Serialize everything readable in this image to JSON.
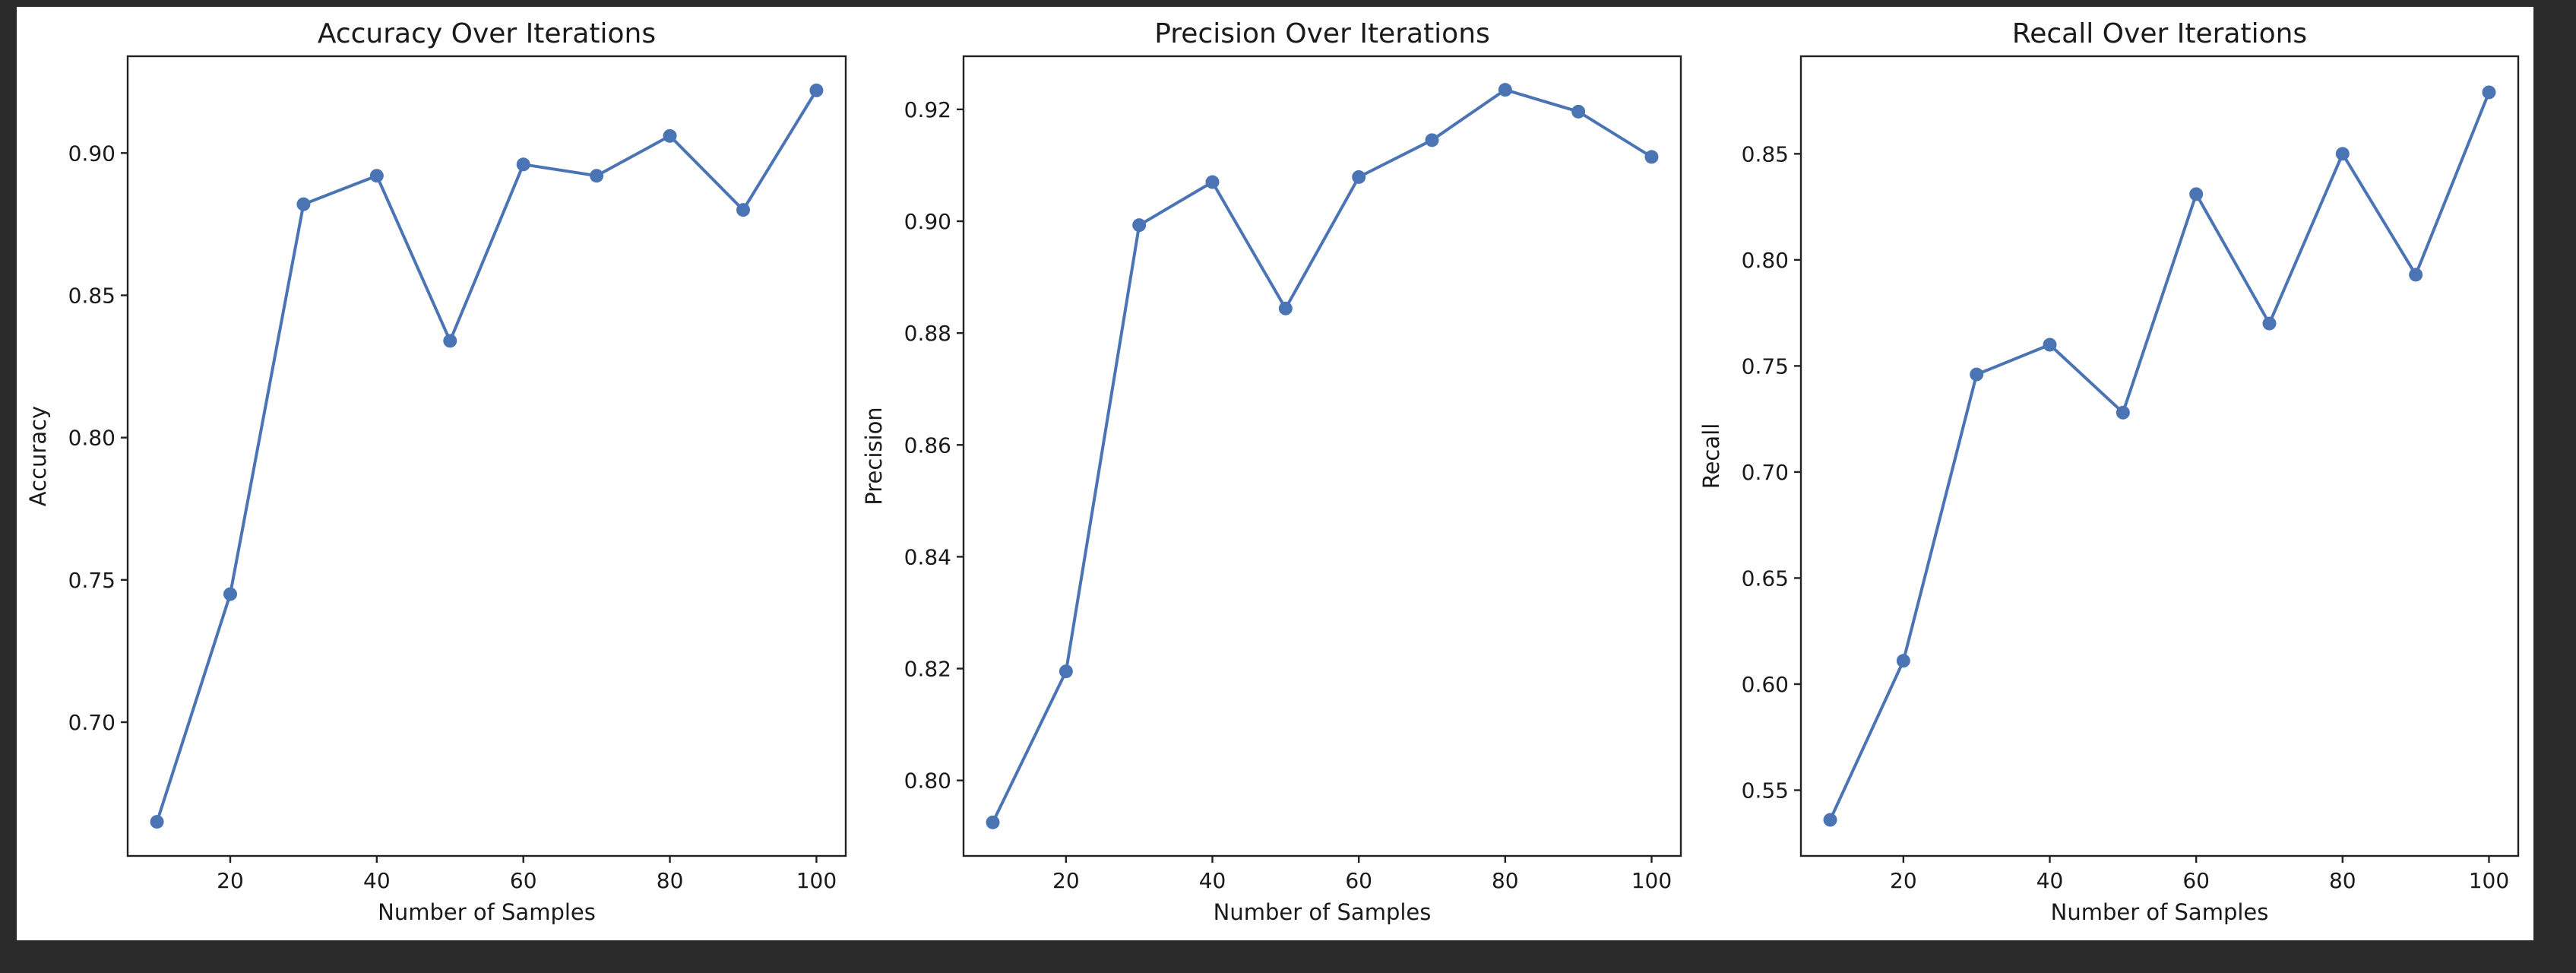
{
  "colors": {
    "series": "#4a74b4",
    "background": "#2b2b2b",
    "figure": "#ffffff"
  },
  "chart_data": [
    {
      "type": "line",
      "title": "Accuracy Over Iterations",
      "xlabel": "Number of Samples",
      "ylabel": "Accuracy",
      "x": [
        10,
        20,
        30,
        40,
        50,
        60,
        70,
        80,
        90,
        100
      ],
      "series": [
        {
          "values": [
            0.665,
            0.745,
            0.882,
            0.892,
            0.834,
            0.896,
            0.892,
            0.906,
            0.88,
            0.922
          ]
        }
      ],
      "xlim": [
        6,
        104
      ],
      "ylim": [
        0.653,
        0.934
      ],
      "xticks": [
        20,
        40,
        60,
        80,
        100
      ],
      "xtick_labels": [
        "20",
        "40",
        "60",
        "80",
        "100"
      ],
      "yticks": [
        0.7,
        0.75,
        0.8,
        0.85,
        0.9
      ],
      "ytick_labels": [
        "0.70",
        "0.75",
        "0.80",
        "0.85",
        "0.90"
      ],
      "grid": false,
      "marker": "circle"
    },
    {
      "type": "line",
      "title": "Precision Over Iterations",
      "xlabel": "Number of Samples",
      "ylabel": "Precision",
      "x": [
        10,
        20,
        30,
        40,
        50,
        60,
        70,
        80,
        90,
        100
      ],
      "series": [
        {
          "values": [
            0.7925,
            0.8195,
            0.8993,
            0.907,
            0.8844,
            0.9079,
            0.9145,
            0.9235,
            0.9196,
            0.9115
          ]
        }
      ],
      "xlim": [
        6,
        104
      ],
      "ylim": [
        0.7865,
        0.9295
      ],
      "xticks": [
        20,
        40,
        60,
        80,
        100
      ],
      "xtick_labels": [
        "20",
        "40",
        "60",
        "80",
        "100"
      ],
      "yticks": [
        0.8,
        0.82,
        0.84,
        0.86,
        0.88,
        0.9,
        0.92
      ],
      "ytick_labels": [
        "0.80",
        "0.82",
        "0.84",
        "0.86",
        "0.88",
        "0.90",
        "0.92"
      ],
      "grid": false,
      "marker": "circle"
    },
    {
      "type": "line",
      "title": "Recall Over Iterations",
      "xlabel": "Number of Samples",
      "ylabel": "Recall",
      "x": [
        10,
        20,
        30,
        40,
        50,
        60,
        70,
        80,
        90,
        100
      ],
      "series": [
        {
          "values": [
            0.536,
            0.611,
            0.746,
            0.76,
            0.728,
            0.831,
            0.77,
            0.85,
            0.793,
            0.879
          ]
        }
      ],
      "xlim": [
        6,
        104
      ],
      "ylim": [
        0.519,
        0.896
      ],
      "xticks": [
        20,
        40,
        60,
        80,
        100
      ],
      "xtick_labels": [
        "20",
        "40",
        "60",
        "80",
        "100"
      ],
      "yticks": [
        0.55,
        0.6,
        0.65,
        0.7,
        0.75,
        0.8,
        0.85
      ],
      "ytick_labels": [
        "0.55",
        "0.60",
        "0.65",
        "0.70",
        "0.75",
        "0.80",
        "0.85"
      ],
      "grid": false,
      "marker": "circle"
    }
  ]
}
